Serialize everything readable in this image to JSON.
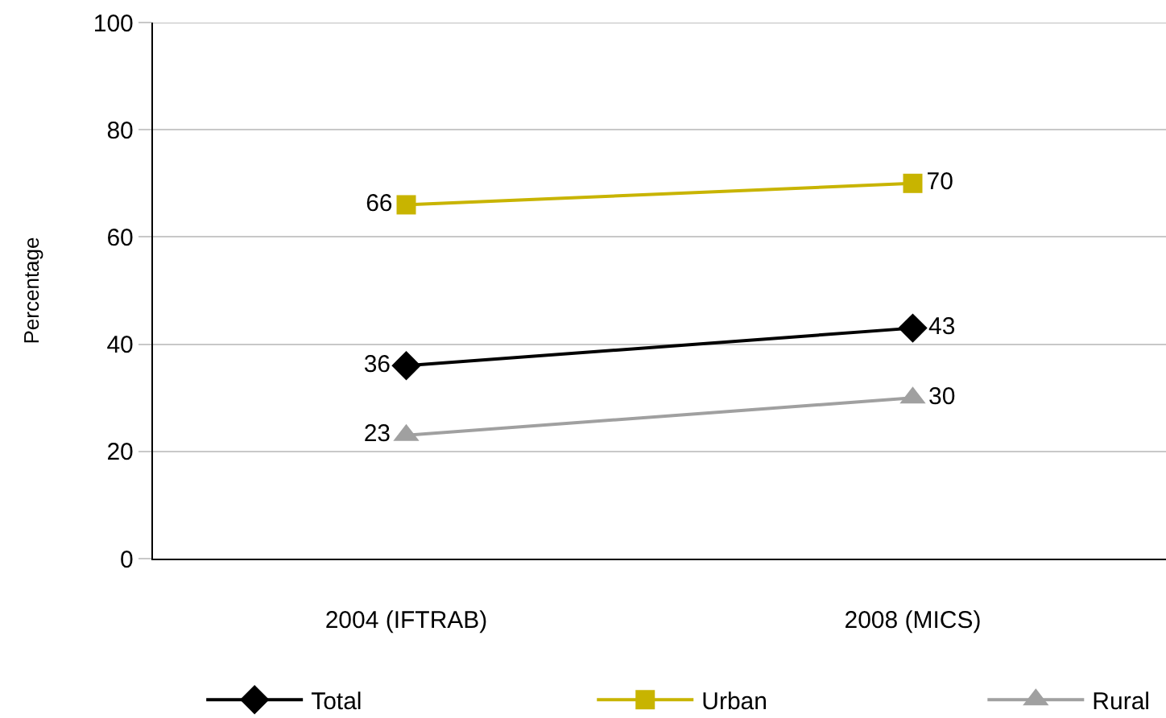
{
  "chart_data": {
    "type": "line",
    "ylabel": "Percentage",
    "categories": [
      "2004 (IFTRAB)",
      "2008 (MICS)"
    ],
    "series": [
      {
        "name": "Total",
        "color": "#000000",
        "values": [
          36,
          43
        ],
        "marker": "diamond"
      },
      {
        "name": "Urban",
        "color": "#c8b400",
        "values": [
          66,
          70
        ],
        "marker": "square"
      },
      {
        "name": "Rural",
        "color": "#a0a0a0",
        "values": [
          23,
          30
        ],
        "marker": "triangle"
      }
    ],
    "ylim": [
      0,
      100
    ],
    "yticks": [
      0,
      20,
      40,
      60,
      80,
      100
    ],
    "grid": "y",
    "legend": "bottom",
    "data_labels": true,
    "line_style": "solid"
  }
}
